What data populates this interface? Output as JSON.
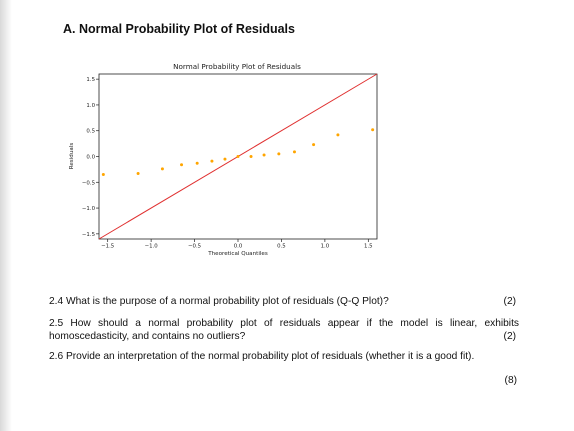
{
  "document": {
    "section_title": "A. Normal Probability Plot of Residuals",
    "questions": [
      {
        "text": "2.4 What is the purpose of a normal probability plot of residuals (Q-Q Plot)?",
        "marks": "(2)"
      },
      {
        "text": "2.5 How should a normal probability plot of residuals appear if the model is linear, exhibits homoscedasticity, and contains no outliers?",
        "marks": "(2)"
      },
      {
        "text": "2.6 Provide an interpretation of the normal probability plot of residuals (whether it is a good fit).",
        "marks": "(8)"
      }
    ]
  },
  "chart_data": {
    "type": "scatter",
    "title": "Normal Probability Plot of Residuals",
    "xlabel": "Theoretical Quantiles",
    "ylabel": "Residuals",
    "xlim": [
      -1.6,
      1.6
    ],
    "ylim": [
      -1.6,
      1.6
    ],
    "xticks": [
      -1.5,
      -1.0,
      -0.5,
      0.0,
      0.5,
      1.0,
      1.5
    ],
    "yticks": [
      -1.5,
      -1.0,
      -0.5,
      0.0,
      0.5,
      1.0,
      1.5
    ],
    "xtick_labels": [
      "−1.5",
      "−1.0",
      "−0.5",
      "0.0",
      "0.5",
      "1.0",
      "1.5"
    ],
    "ytick_labels": [
      "−1.5",
      "−1.0",
      "−0.5",
      "0.0",
      "0.5",
      "1.0",
      "1.5"
    ],
    "grid": false,
    "points": {
      "x": [
        -1.55,
        -1.15,
        -0.87,
        -0.65,
        -0.47,
        -0.3,
        -0.15,
        0.0,
        0.15,
        0.3,
        0.47,
        0.65,
        0.87,
        1.15,
        1.55
      ],
      "y": [
        -0.35,
        -0.33,
        -0.24,
        -0.16,
        -0.13,
        -0.09,
        -0.05,
        0.0,
        0.0,
        0.03,
        0.05,
        0.09,
        0.23,
        0.42,
        0.52
      ],
      "color": "#FFA500"
    },
    "reference_line": {
      "slope": 1,
      "intercept": 0,
      "color": "#E03030"
    }
  }
}
